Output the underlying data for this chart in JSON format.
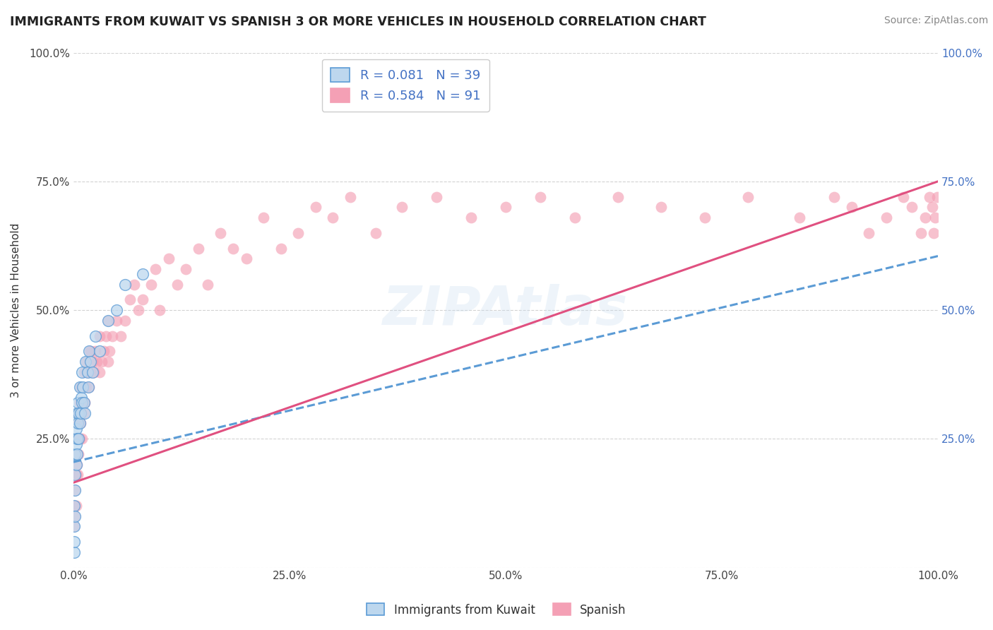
{
  "title": "IMMIGRANTS FROM KUWAIT VS SPANISH 3 OR MORE VEHICLES IN HOUSEHOLD CORRELATION CHART",
  "source": "Source: ZipAtlas.com",
  "ylabel": "3 or more Vehicles in Household",
  "xmin": 0.0,
  "xmax": 1.0,
  "ymin": 0.0,
  "ymax": 1.0,
  "xtick_labels": [
    "0.0%",
    "25.0%",
    "50.0%",
    "75.0%",
    "100.0%"
  ],
  "xtick_vals": [
    0.0,
    0.25,
    0.5,
    0.75,
    1.0
  ],
  "ytick_vals": [
    0.0,
    0.25,
    0.5,
    0.75,
    1.0
  ],
  "ytick_labels_left": [
    "",
    "25.0%",
    "50.0%",
    "75.0%",
    "100.0%"
  ],
  "ytick_labels_right": [
    "",
    "25.0%",
    "50.0%",
    "75.0%",
    "100.0%"
  ],
  "kuwait_color": "#5b9bd5",
  "kuwait_color_fill": "#bdd7ee",
  "spanish_color": "#f4a0b5",
  "spanish_line_color": "#e05080",
  "R_kuwait": 0.081,
  "N_kuwait": 39,
  "R_spanish": 0.584,
  "N_spanish": 91,
  "legend_text_color": "#4472c4",
  "background_color": "#ffffff",
  "watermark_text": "ZIPAtlas",
  "grid_color": "#c8c8c8",
  "kuwait_line_intercept": 0.205,
  "kuwait_line_slope": 0.4,
  "spanish_line_intercept": 0.165,
  "spanish_line_slope": 0.585,
  "kuwait_scatter_x": [
    0.0005,
    0.001,
    0.001,
    0.001,
    0.0015,
    0.002,
    0.002,
    0.002,
    0.003,
    0.003,
    0.003,
    0.004,
    0.004,
    0.004,
    0.005,
    0.005,
    0.006,
    0.006,
    0.007,
    0.007,
    0.008,
    0.009,
    0.01,
    0.01,
    0.011,
    0.012,
    0.013,
    0.014,
    0.016,
    0.017,
    0.018,
    0.02,
    0.022,
    0.025,
    0.03,
    0.04,
    0.05,
    0.06,
    0.08
  ],
  "kuwait_scatter_y": [
    0.03,
    0.05,
    0.08,
    0.12,
    0.15,
    0.1,
    0.18,
    0.22,
    0.2,
    0.24,
    0.27,
    0.22,
    0.25,
    0.3,
    0.28,
    0.32,
    0.25,
    0.3,
    0.28,
    0.35,
    0.3,
    0.33,
    0.32,
    0.38,
    0.35,
    0.32,
    0.3,
    0.4,
    0.38,
    0.35,
    0.42,
    0.4,
    0.38,
    0.45,
    0.42,
    0.48,
    0.5,
    0.55,
    0.57
  ],
  "spanish_scatter_x": [
    0.001,
    0.001,
    0.002,
    0.002,
    0.003,
    0.003,
    0.004,
    0.004,
    0.005,
    0.005,
    0.006,
    0.006,
    0.007,
    0.007,
    0.008,
    0.008,
    0.009,
    0.01,
    0.01,
    0.012,
    0.012,
    0.013,
    0.015,
    0.015,
    0.016,
    0.018,
    0.019,
    0.02,
    0.02,
    0.022,
    0.024,
    0.025,
    0.027,
    0.03,
    0.03,
    0.033,
    0.035,
    0.038,
    0.04,
    0.04,
    0.042,
    0.045,
    0.05,
    0.055,
    0.06,
    0.065,
    0.07,
    0.075,
    0.08,
    0.09,
    0.095,
    0.1,
    0.11,
    0.12,
    0.13,
    0.145,
    0.155,
    0.17,
    0.185,
    0.2,
    0.22,
    0.24,
    0.26,
    0.28,
    0.3,
    0.32,
    0.35,
    0.38,
    0.42,
    0.46,
    0.5,
    0.54,
    0.58,
    0.63,
    0.68,
    0.73,
    0.78,
    0.84,
    0.88,
    0.9,
    0.92,
    0.94,
    0.96,
    0.97,
    0.98,
    0.985,
    0.99,
    0.993,
    0.995,
    0.997,
    0.999
  ],
  "spanish_scatter_y": [
    0.08,
    0.12,
    0.1,
    0.15,
    0.12,
    0.18,
    0.2,
    0.25,
    0.18,
    0.3,
    0.22,
    0.28,
    0.25,
    0.32,
    0.28,
    0.35,
    0.3,
    0.25,
    0.32,
    0.3,
    0.38,
    0.32,
    0.35,
    0.4,
    0.38,
    0.35,
    0.42,
    0.38,
    0.42,
    0.4,
    0.38,
    0.42,
    0.4,
    0.38,
    0.45,
    0.4,
    0.42,
    0.45,
    0.4,
    0.48,
    0.42,
    0.45,
    0.48,
    0.45,
    0.48,
    0.52,
    0.55,
    0.5,
    0.52,
    0.55,
    0.58,
    0.5,
    0.6,
    0.55,
    0.58,
    0.62,
    0.55,
    0.65,
    0.62,
    0.6,
    0.68,
    0.62,
    0.65,
    0.7,
    0.68,
    0.72,
    0.65,
    0.7,
    0.72,
    0.68,
    0.7,
    0.72,
    0.68,
    0.72,
    0.7,
    0.68,
    0.72,
    0.68,
    0.72,
    0.7,
    0.65,
    0.68,
    0.72,
    0.7,
    0.65,
    0.68,
    0.72,
    0.7,
    0.65,
    0.68,
    0.72
  ]
}
